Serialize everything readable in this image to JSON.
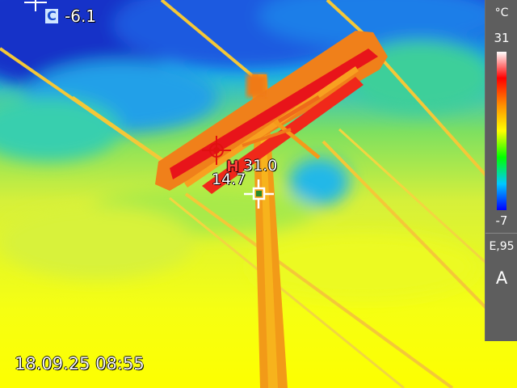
{
  "measurements": {
    "cold_tag": "C",
    "cold_value": "-6.1",
    "hot_tag": "H",
    "hot_value": "31.0",
    "center_value": "14.7"
  },
  "scale": {
    "unit": "°C",
    "max": "31",
    "min": "-7",
    "emissivity": "E,95",
    "mode": "A"
  },
  "timestamp": "18.09.25 08:55",
  "colors": {
    "palette": [
      "#ffffff",
      "#ff0000",
      "#ff8c00",
      "#ffff00",
      "#00ff00",
      "#00c8ff",
      "#0000ff"
    ],
    "hot_marker": "#e01010",
    "center_marker": "#2a8a2a"
  }
}
